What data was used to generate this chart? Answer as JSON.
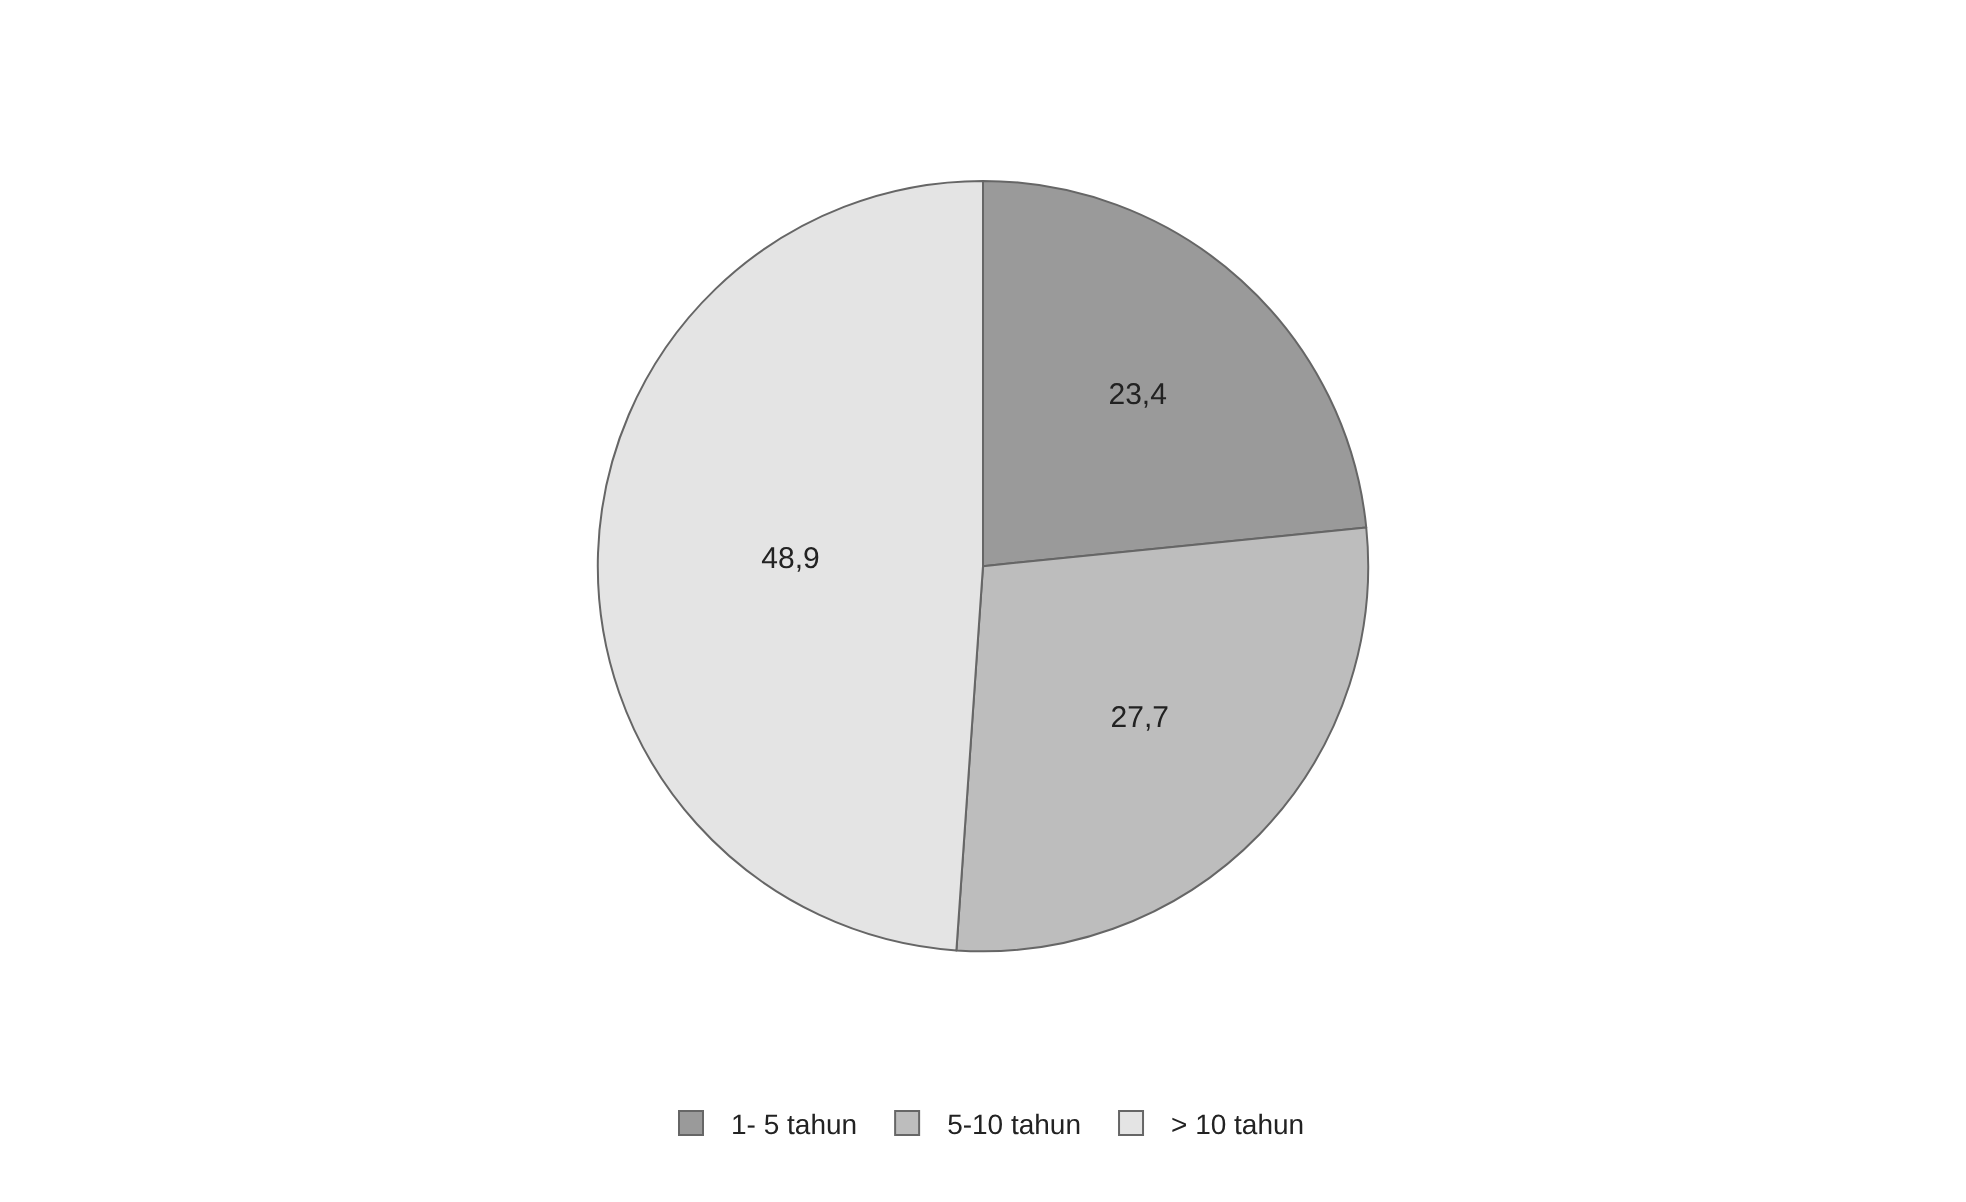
{
  "chart_data": {
    "type": "pie",
    "categories": [
      "1- 5 tahun",
      "5-10 tahun",
      "> 10 tahun"
    ],
    "values": [
      23.4,
      27.7,
      48.9
    ],
    "value_labels": [
      "23,4",
      "27,7",
      "48,9"
    ],
    "colors": [
      "#9a9a9a",
      "#bdbdbd",
      "#e4e4e4"
    ],
    "legend": "bottom"
  }
}
